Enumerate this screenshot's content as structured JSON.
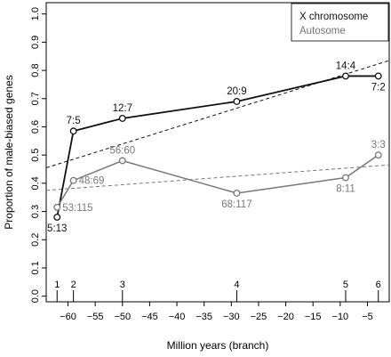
{
  "chart_data": {
    "type": "line",
    "title": "",
    "xlabel": "Million years (branch)",
    "ylabel": "Proportion of male-biased genes",
    "xlim": [
      -64,
      -1
    ],
    "ylim": [
      -0.02,
      1.04
    ],
    "x_ticks": [
      -60,
      -55,
      -50,
      -45,
      -40,
      -35,
      -30,
      -25,
      -20,
      -15,
      -10,
      -5
    ],
    "x_tick_labels": [
      "−60",
      "−55",
      "−50",
      "−45",
      "−40",
      "−35",
      "−30",
      "−25",
      "−20",
      "−15",
      "−10",
      "−5"
    ],
    "y_ticks": [
      0.0,
      0.1,
      0.2,
      0.3,
      0.4,
      0.5,
      0.6,
      0.7,
      0.8,
      0.9,
      1.0
    ],
    "y_tick_labels": [
      "0.0",
      "0.1",
      "0.2",
      "0.3",
      "0.4",
      "0.5",
      "0.6",
      "0.7",
      "0.8",
      "0.9",
      "1.0"
    ],
    "grid": false,
    "legend_position": "top-right",
    "branches": [
      {
        "label": "1",
        "x": -62
      },
      {
        "label": "2",
        "x": -59
      },
      {
        "label": "3",
        "x": -50
      },
      {
        "label": "4",
        "x": -29
      },
      {
        "label": "5",
        "x": -9
      },
      {
        "label": "6",
        "x": -3
      }
    ],
    "series": [
      {
        "name": "X chromosome",
        "color": "#111111",
        "x": [
          -62,
          -59,
          -50,
          -29,
          -9,
          -3
        ],
        "y": [
          0.28,
          0.585,
          0.63,
          0.69,
          0.78,
          0.78
        ],
        "labels": [
          "5:13",
          "7:5",
          "12:7",
          "20:9",
          "14:4",
          "7:2"
        ],
        "label_pos": [
          "below",
          "above",
          "above",
          "above",
          "above",
          "below"
        ],
        "trend": {
          "x": [
            -64,
            -1
          ],
          "y": [
            0.455,
            0.835
          ]
        }
      },
      {
        "name": "Autosome",
        "color": "#777777",
        "x": [
          -62,
          -59,
          -50,
          -29,
          -9,
          -3
        ],
        "y": [
          0.315,
          0.41,
          0.48,
          0.365,
          0.42,
          0.5
        ],
        "labels": [
          "53:115",
          "48:69",
          "56:60",
          "68:117",
          "8:11",
          "3:3"
        ],
        "label_pos": [
          "right",
          "right",
          "above",
          "below",
          "below",
          "above"
        ],
        "trend": {
          "x": [
            -64,
            -1
          ],
          "y": [
            0.375,
            0.465
          ]
        }
      }
    ]
  }
}
